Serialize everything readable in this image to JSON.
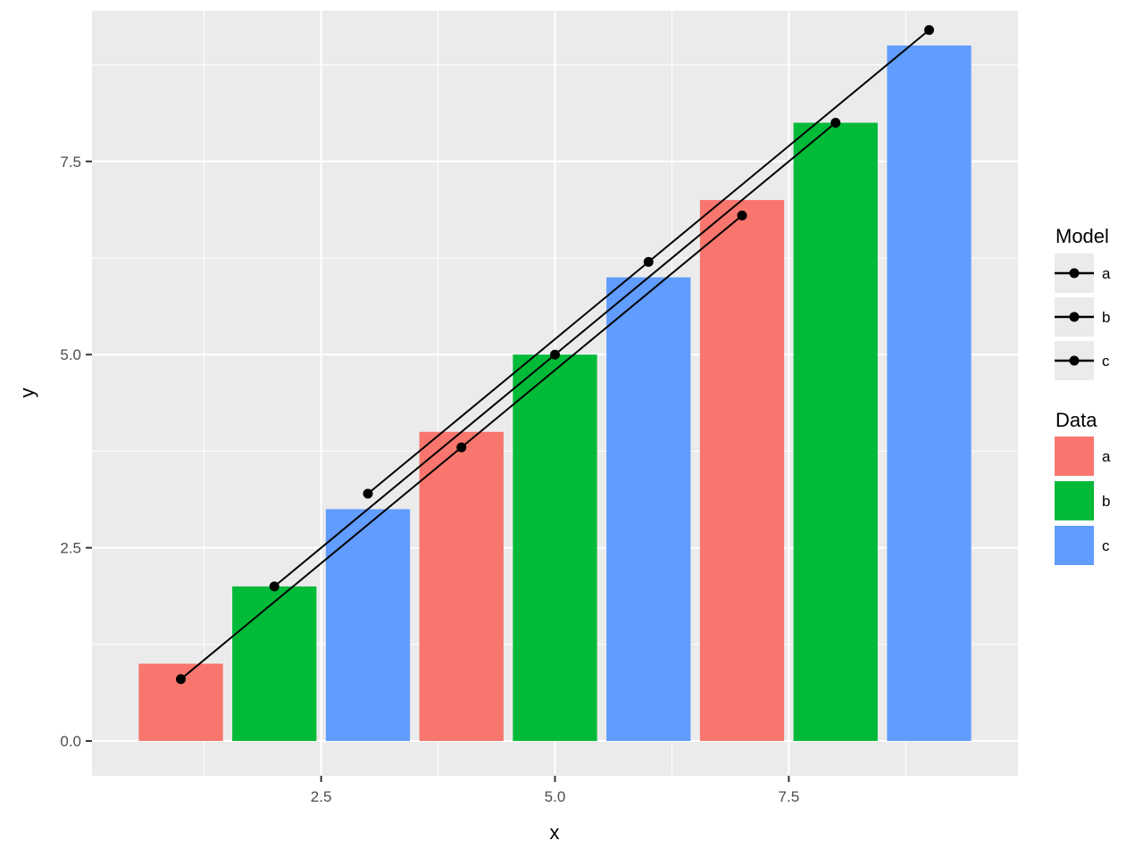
{
  "chart_data": {
    "type": "bar",
    "xlabel": "x",
    "ylabel": "y",
    "xlim": [
      0.05,
      9.95
    ],
    "ylim": [
      -0.45,
      9.45
    ],
    "x_ticks": [
      2.5,
      5.0,
      7.5
    ],
    "x_tick_labels": [
      "2.5",
      "5.0",
      "7.5"
    ],
    "y_ticks": [
      0.0,
      2.5,
      5.0,
      7.5
    ],
    "y_tick_labels": [
      "0.0",
      "2.5",
      "5.0",
      "7.5"
    ],
    "grid": true,
    "bars": {
      "x": [
        1,
        2,
        3,
        4,
        5,
        6,
        7,
        8,
        9
      ],
      "values": [
        1,
        2,
        3,
        4,
        5,
        6,
        7,
        8,
        9
      ],
      "group": [
        "a",
        "b",
        "c",
        "a",
        "b",
        "c",
        "a",
        "b",
        "c"
      ],
      "width": 0.9
    },
    "series": [
      {
        "name": "a",
        "x": [
          1,
          4,
          7
        ],
        "values": [
          0.8,
          3.8,
          6.8
        ]
      },
      {
        "name": "b",
        "x": [
          2,
          5,
          8
        ],
        "values": [
          2.0,
          5.0,
          8.0
        ]
      },
      {
        "name": "c",
        "x": [
          3,
          6,
          9
        ],
        "values": [
          3.2,
          6.2,
          9.2
        ]
      }
    ],
    "legends": [
      {
        "title": "Model",
        "kind": "line-point",
        "entries": [
          "a",
          "b",
          "c"
        ]
      },
      {
        "title": "Data",
        "kind": "fill",
        "entries": [
          "a",
          "b",
          "c"
        ]
      }
    ],
    "legend_position": "right",
    "colors": {
      "a": "#F8766D",
      "b": "#00BA38",
      "c": "#619CFF",
      "line": "#000000",
      "panel": "#EBEBEB",
      "grid": "#FFFFFF"
    }
  }
}
